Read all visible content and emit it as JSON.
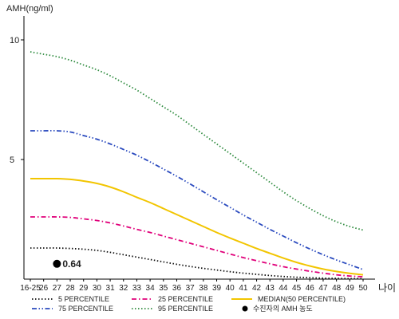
{
  "chart_data": {
    "type": "line",
    "ylabel": "AMH(ng/ml)",
    "xlabel": "나이",
    "ylim": [
      0,
      11
    ],
    "yticks": [
      5,
      10
    ],
    "categories": [
      "16-25",
      "26",
      "27",
      "28",
      "29",
      "30",
      "31",
      "32",
      "33",
      "34",
      "35",
      "36",
      "37",
      "38",
      "39",
      "40",
      "41",
      "42",
      "43",
      "44",
      "45",
      "46",
      "47",
      "48",
      "49",
      "50"
    ],
    "series": [
      {
        "name": "5 PERCENTILE",
        "color": "#111111",
        "style": "dotted",
        "values": [
          1.3,
          1.3,
          1.3,
          1.28,
          1.25,
          1.2,
          1.12,
          1.02,
          0.92,
          0.82,
          0.72,
          0.62,
          0.53,
          0.45,
          0.38,
          0.31,
          0.25,
          0.2,
          0.15,
          0.11,
          0.08,
          0.06,
          0.04,
          0.03,
          0.02,
          0.02
        ]
      },
      {
        "name": "25 PERCENTILE",
        "color": "#e0007a",
        "style": "dashdot",
        "values": [
          2.6,
          2.6,
          2.6,
          2.58,
          2.52,
          2.45,
          2.35,
          2.22,
          2.08,
          1.95,
          1.8,
          1.65,
          1.5,
          1.35,
          1.2,
          1.05,
          0.9,
          0.77,
          0.64,
          0.52,
          0.42,
          0.33,
          0.25,
          0.18,
          0.13,
          0.1
        ]
      },
      {
        "name": "MEDIAN(50 PERCENTILE)",
        "color": "#f2c500",
        "style": "solid",
        "values": [
          4.2,
          4.2,
          4.2,
          4.17,
          4.1,
          4.0,
          3.85,
          3.65,
          3.42,
          3.2,
          2.95,
          2.7,
          2.45,
          2.2,
          1.95,
          1.72,
          1.5,
          1.28,
          1.08,
          0.88,
          0.7,
          0.55,
          0.42,
          0.32,
          0.24,
          0.18
        ]
      },
      {
        "name": "75 PERCENTILE",
        "color": "#2b4bbf",
        "style": "dashdotdot",
        "values": [
          6.2,
          6.2,
          6.2,
          6.15,
          6.0,
          5.85,
          5.65,
          5.42,
          5.18,
          4.9,
          4.6,
          4.3,
          3.98,
          3.65,
          3.32,
          3.0,
          2.68,
          2.38,
          2.08,
          1.8,
          1.52,
          1.26,
          1.02,
          0.8,
          0.6,
          0.4
        ]
      },
      {
        "name": "95 PERCENTILE",
        "color": "#2e8b3e",
        "style": "dotted",
        "values": [
          9.5,
          9.4,
          9.3,
          9.15,
          8.95,
          8.75,
          8.5,
          8.2,
          7.9,
          7.55,
          7.2,
          6.85,
          6.45,
          6.05,
          5.65,
          5.25,
          4.85,
          4.45,
          4.05,
          3.65,
          3.28,
          2.95,
          2.65,
          2.4,
          2.2,
          2.05
        ]
      }
    ],
    "marker": {
      "legend": "수진자의 AMH 농도",
      "x": "27",
      "value": 0.64,
      "label": "0.64",
      "color": "#000000"
    },
    "legend_position": "bottom",
    "grid": false
  }
}
